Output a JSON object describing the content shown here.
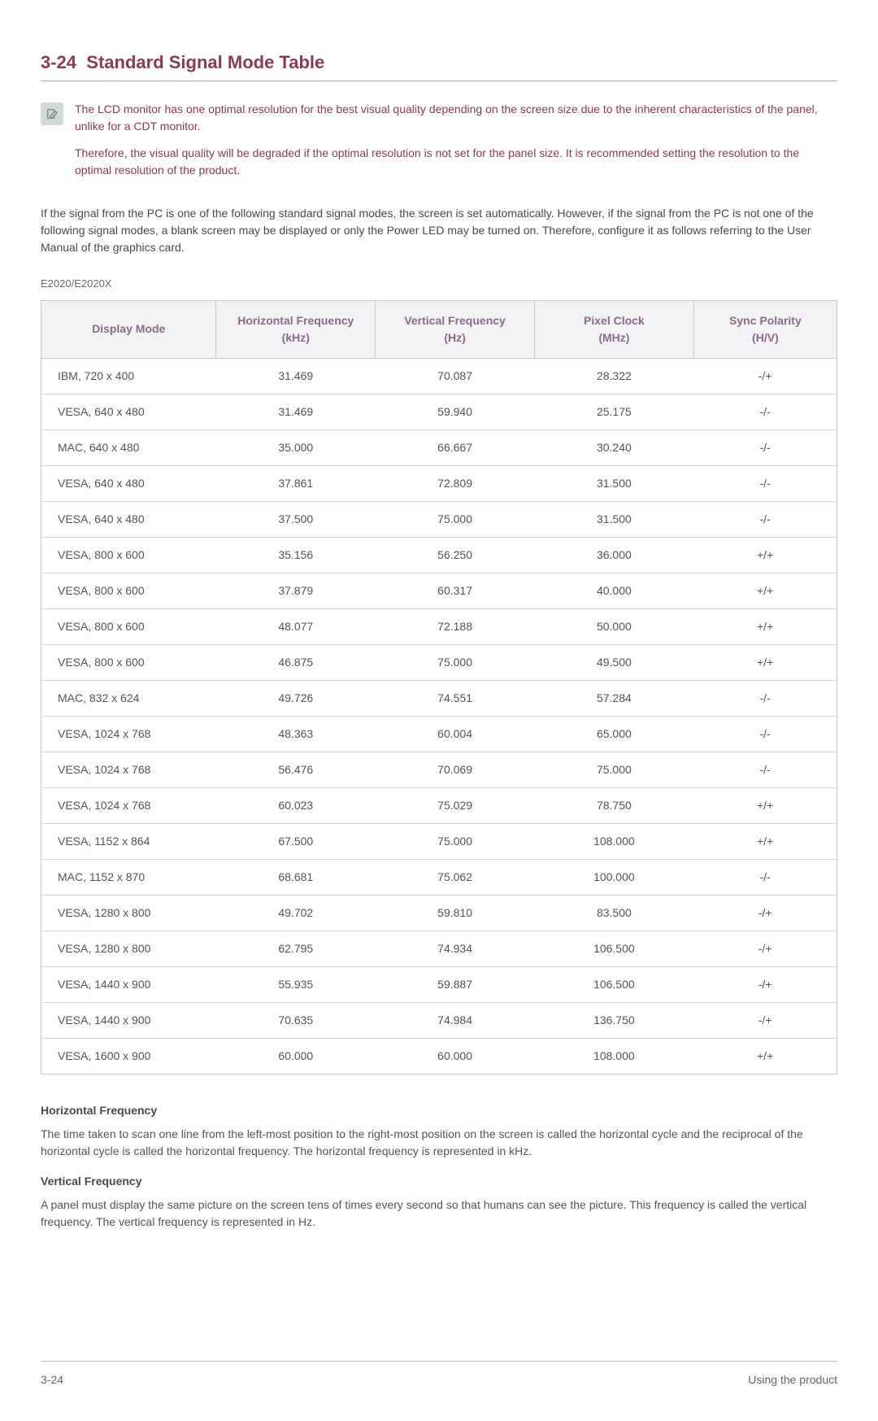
{
  "section": {
    "number": "3-24",
    "title": "Standard Signal Mode Table"
  },
  "note": {
    "p1": "The LCD monitor has one optimal resolution for the best visual quality depending on the screen size due to the inherent characteristics of the panel, unlike for a CDT monitor.",
    "p2": "Therefore, the visual quality will be degraded if the optimal resolution is not set for the panel size. It is recommended setting the resolution to the optimal resolution of the product."
  },
  "intro": "If the signal from the PC is one of the following standard signal modes, the screen is set automatically. However, if the signal from the PC is not one of the following signal modes, a blank screen may be displayed or only the Power LED may be turned on. Therefore, configure it as follows referring to the User Manual of the graphics card.",
  "model": "E2020/E2020X",
  "table": {
    "columns": [
      "Display Mode",
      "Horizontal Frequency (kHz)",
      "Vertical Frequency (Hz)",
      "Pixel Clock (MHz)",
      "Sync Polarity (H/V)"
    ],
    "rows": [
      [
        "IBM, 720 x 400",
        "31.469",
        "70.087",
        "28.322",
        "-/+"
      ],
      [
        "VESA, 640 x 480",
        "31.469",
        "59.940",
        "25.175",
        "-/-"
      ],
      [
        "MAC, 640 x 480",
        "35.000",
        "66.667",
        "30.240",
        "-/-"
      ],
      [
        "VESA, 640 x 480",
        "37.861",
        "72.809",
        "31.500",
        "-/-"
      ],
      [
        "VESA, 640 x 480",
        "37.500",
        "75.000",
        "31.500",
        "-/-"
      ],
      [
        "VESA, 800 x 600",
        "35.156",
        "56.250",
        "36.000",
        "+/+"
      ],
      [
        "VESA, 800 x 600",
        "37.879",
        "60.317",
        "40.000",
        "+/+"
      ],
      [
        "VESA, 800 x 600",
        "48.077",
        "72.188",
        "50.000",
        "+/+"
      ],
      [
        "VESA, 800 x 600",
        "46.875",
        "75.000",
        "49.500",
        "+/+"
      ],
      [
        "MAC, 832 x 624",
        "49.726",
        "74.551",
        "57.284",
        "-/-"
      ],
      [
        "VESA, 1024 x 768",
        "48.363",
        "60.004",
        "65.000",
        "-/-"
      ],
      [
        "VESA, 1024 x 768",
        "56.476",
        "70.069",
        "75.000",
        "-/-"
      ],
      [
        "VESA, 1024 x 768",
        "60.023",
        "75.029",
        "78.750",
        "+/+"
      ],
      [
        "VESA, 1152 x 864",
        "67.500",
        "75.000",
        "108.000",
        "+/+"
      ],
      [
        "MAC, 1152 x 870",
        "68.681",
        "75.062",
        "100.000",
        "-/-"
      ],
      [
        "VESA, 1280 x 800",
        "49.702",
        "59.810",
        "83.500",
        "-/+"
      ],
      [
        "VESA, 1280 x 800",
        "62.795",
        "74.934",
        "106.500",
        "-/+"
      ],
      [
        "VESA, 1440 x 900",
        "55.935",
        "59.887",
        "106.500",
        "-/+"
      ],
      [
        "VESA, 1440 x 900",
        "70.635",
        "74.984",
        "136.750",
        "-/+"
      ],
      [
        "VESA, 1600 x 900",
        "60.000",
        "60.000",
        "108.000",
        "+/+"
      ]
    ],
    "col_widths": [
      "22%",
      "20%",
      "20%",
      "20%",
      "18%"
    ]
  },
  "definitions": {
    "hf_title": "Horizontal Frequency",
    "hf_body": "The time taken to scan one line from the left-most position to the right-most position on the screen is called the horizontal cycle and the reciprocal of the horizontal cycle is called the horizontal frequency. The horizontal frequency is represented in kHz.",
    "vf_title": "Vertical Frequency",
    "vf_body": "A panel must display the same picture on the screen tens of times every second so that humans can see the picture. This frequency is called the vertical frequency. The vertical frequency is represented in Hz."
  },
  "footer": {
    "left": "3-24",
    "right": "Using the product"
  },
  "colors": {
    "heading": "#8a3a5c",
    "th_text": "#8a6a88",
    "th_bg": "#f3f2f4",
    "border": "#c8c8c8"
  }
}
